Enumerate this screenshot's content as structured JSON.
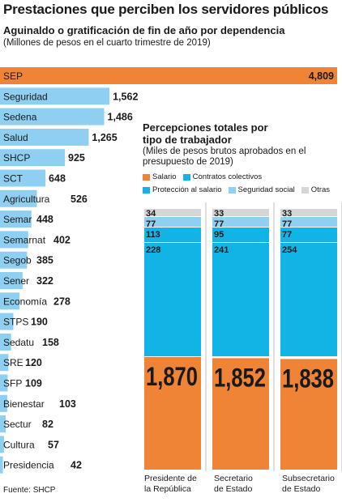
{
  "title": "Prestaciones que perciben los servidores públicos",
  "chart_data": [
    {
      "type": "bar",
      "title": "Aguinaldo o gratificación de fin de año por dependencia",
      "subtitle": "(Millones de pesos en el cuarto trimestre de 2019)",
      "orientation": "horizontal",
      "categories": [
        "SEP",
        "Seguridad",
        "Sedena",
        "Salud",
        "SHCP",
        "SCT",
        "Agricultura",
        "Semar",
        "Semarnat",
        "Segob",
        "Sener",
        "Economía",
        "STPS",
        "Sedatu",
        "SRE",
        "SFP",
        "Bienestar",
        "Sectur",
        "Cultura",
        "Presidencia"
      ],
      "values": [
        4809,
        1562,
        1486,
        1265,
        925,
        648,
        526,
        448,
        402,
        385,
        322,
        278,
        190,
        158,
        120,
        109,
        103,
        82,
        57,
        42
      ],
      "value_labels": [
        "4,809",
        "1,562",
        "1,486",
        "1,265",
        "925",
        "648",
        "526",
        "448",
        "402",
        "385",
        "322",
        "278",
        "190",
        "158",
        "120",
        "109",
        "103",
        "82",
        "57",
        "42"
      ],
      "colors": {
        "bar": "#8fd0f2",
        "highlight": "#ef8437"
      }
    },
    {
      "type": "bar",
      "stacked": true,
      "title": "Percepciones totales por tipo de trabajador",
      "subtitle": "(Miles de pesos brutos aprobados en el presupuesto de 2019)",
      "categories": [
        "Presidente de la República",
        "Secretario de Estado",
        "Subsecretario de Estado"
      ],
      "categories_lines": [
        [
          "Presidente de",
          "la República"
        ],
        [
          "Secretario",
          "de Estado"
        ],
        [
          "Subsecretario",
          "de Estado"
        ]
      ],
      "series": [
        {
          "name": "Salario",
          "color": "#ef8437",
          "values": [
            1870,
            1852,
            1838
          ],
          "labels": [
            "1,870",
            "1,852",
            "1,838"
          ]
        },
        {
          "name": "Contratos colectivos",
          "color": "#12b4e6",
          "values": [
            228,
            241,
            254
          ],
          "labels": [
            "228",
            "241",
            "254"
          ]
        },
        {
          "name": "Protección al salario",
          "color": "#12b4e6",
          "values": [
            113,
            95,
            77
          ],
          "labels": [
            "113",
            "95",
            "77"
          ]
        },
        {
          "name": "Seguridad social",
          "color": "#8fd0f2",
          "values": [
            77,
            77,
            77
          ],
          "labels": [
            "77",
            "77",
            "77"
          ]
        },
        {
          "name": "Otras",
          "color": "#d6d6d6",
          "values": [
            34,
            33,
            33
          ],
          "labels": [
            "34",
            "33",
            "33"
          ]
        }
      ]
    }
  ],
  "source": "Fuente: SHCP"
}
